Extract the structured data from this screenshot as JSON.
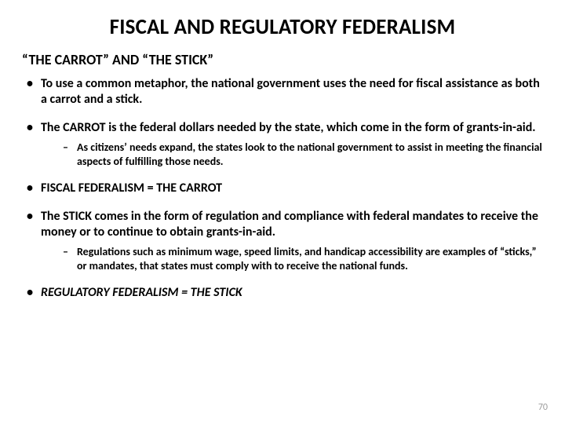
{
  "title": "FISCAL AND REGULATORY FEDERALISM",
  "subtitle": "“THE CARROT” AND “THE STICK”",
  "bullets": {
    "b1": "To use a common metaphor, the national government uses the need for fiscal assistance as both a carrot and a stick.",
    "b2": "The CARROT is the federal dollars needed by the state, which come in the form of grants-in-aid.",
    "b2_sub1": "As citizens’ needs expand, the states look to the national government to assist in meeting the financial aspects of fulfilling those needs.",
    "b3": "FISCAL FEDERALISM = THE CARROT",
    "b4": "The STICK comes in the form of regulation and compliance with federal mandates to receive the money or to continue to obtain grants-in-aid.",
    "b4_sub1": "Regulations such as minimum wage, speed limits, and handicap accessibility are examples of “sticks,” or mandates, that states must comply with to receive the national funds.",
    "b5": "REGULATORY FEDERALISM = THE STICK"
  },
  "page_number": "70",
  "style": {
    "background_color": "#ffffff",
    "text_color": "#000000",
    "page_num_color": "#9c9c9c",
    "title_fontsize": 27,
    "subtitle_fontsize": 18,
    "bullet_fontsize": 16,
    "subbullet_fontsize": 14
  }
}
